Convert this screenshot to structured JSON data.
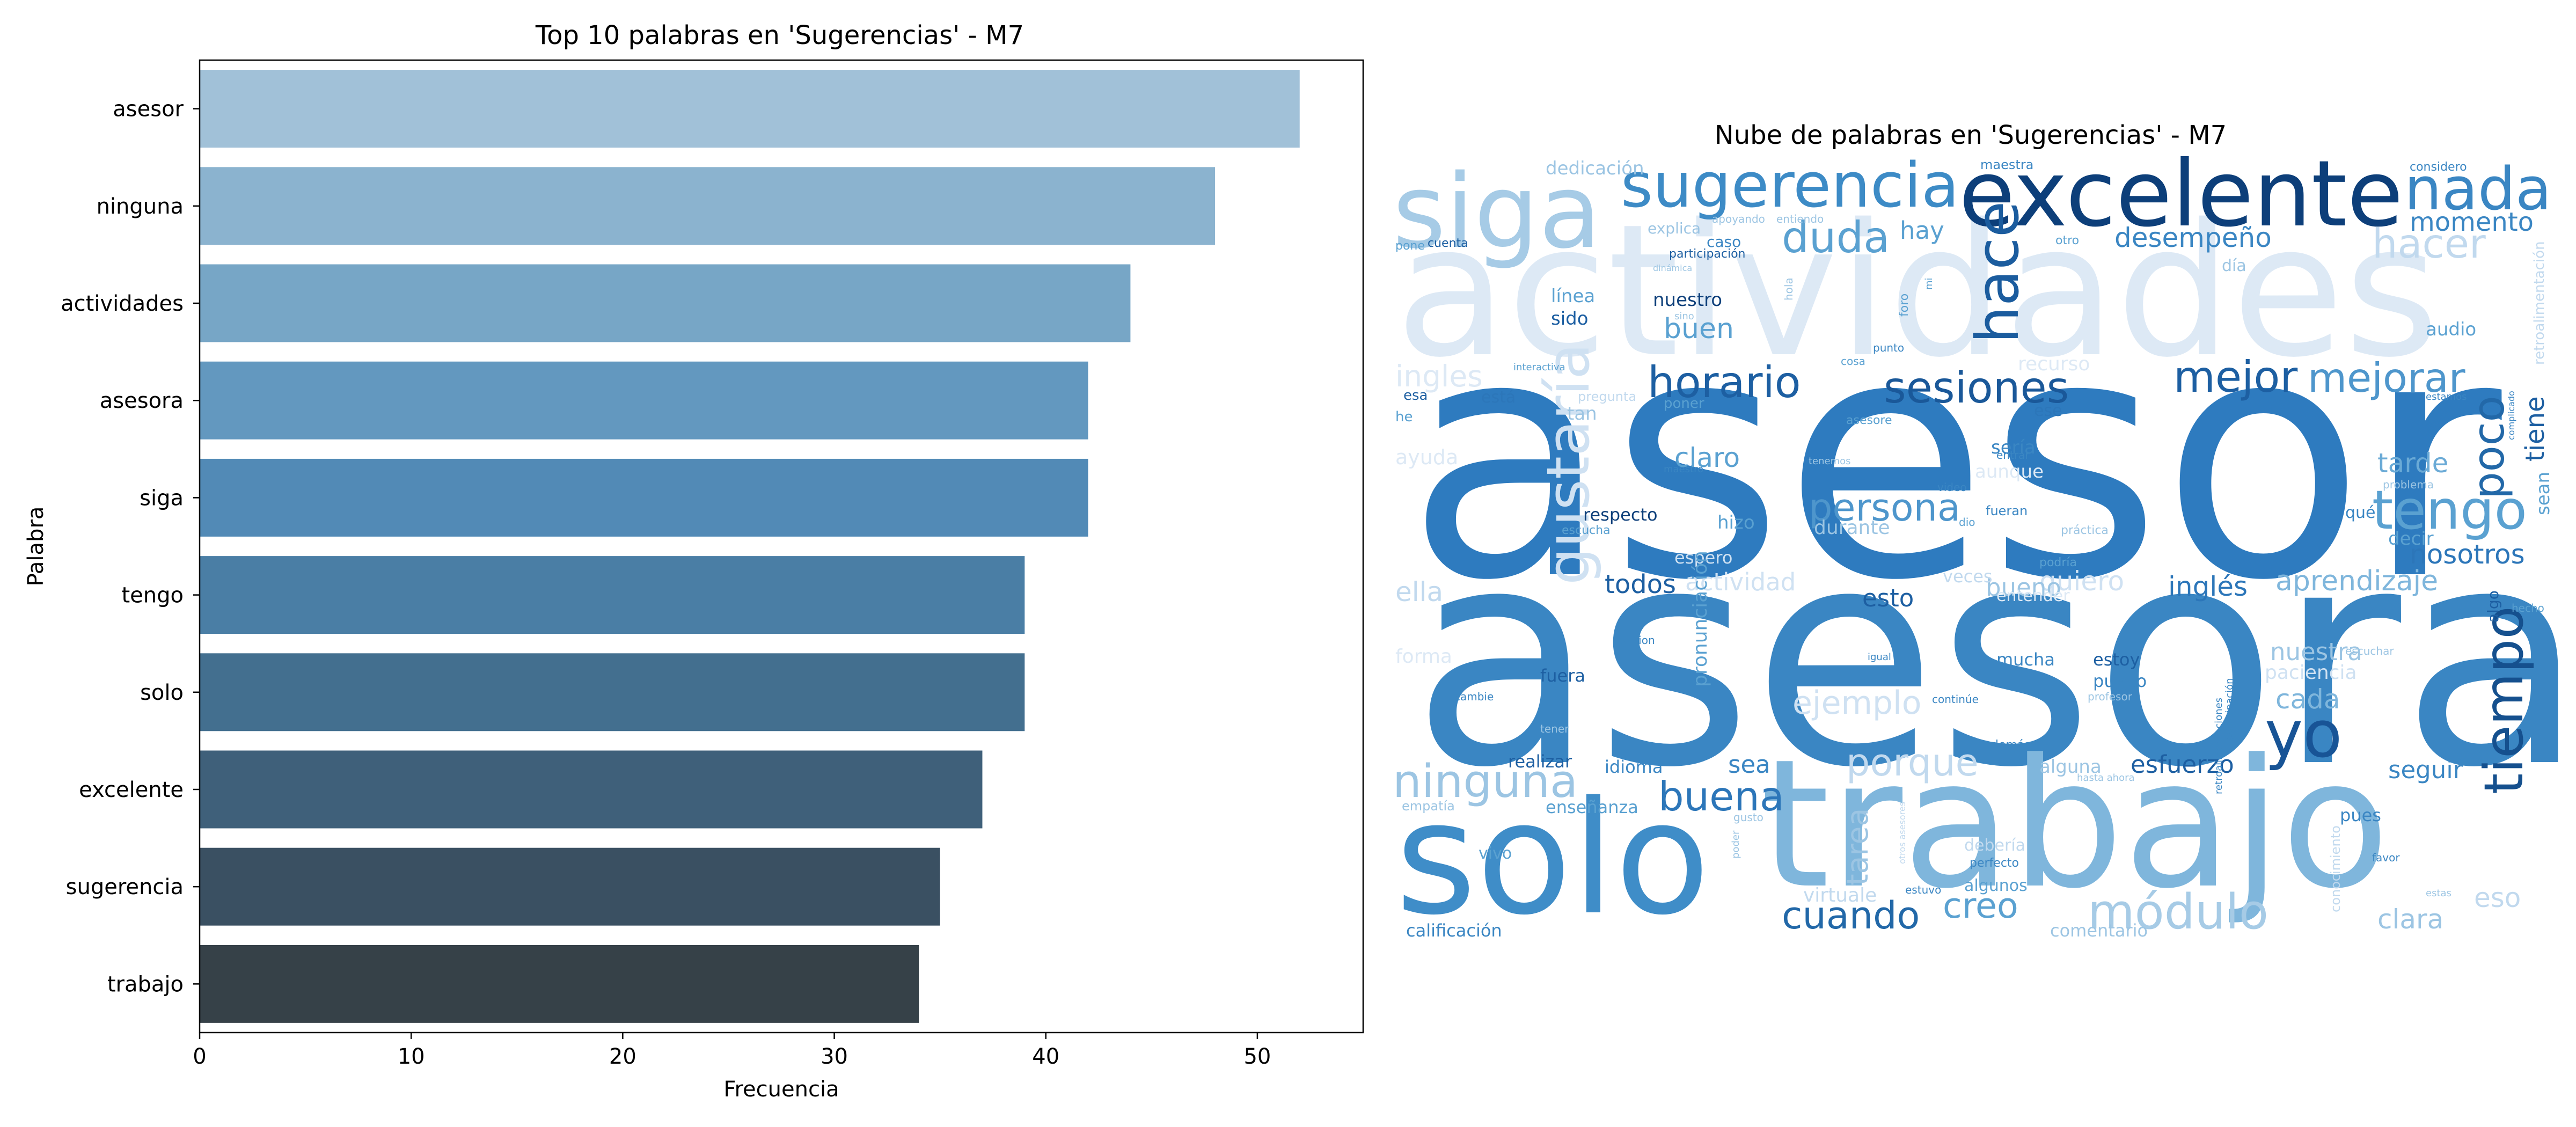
{
  "chart_data": [
    {
      "type": "bar",
      "orientation": "horizontal",
      "title": "Top 10 palabras en 'Sugerencias' - M7",
      "xlabel": "Frecuencia",
      "ylabel": "Palabra",
      "xlim": [
        0,
        55
      ],
      "xticks": [
        0,
        10,
        20,
        30,
        40,
        50
      ],
      "xtick_labels": [
        "0",
        "10",
        "20",
        "30",
        "40",
        "50"
      ],
      "grid": false,
      "categories": [
        "asesor",
        "ninguna",
        "actividades",
        "asesora",
        "siga",
        "tengo",
        "solo",
        "excelente",
        "sugerencia",
        "trabajo"
      ],
      "values": [
        52,
        48,
        44,
        42,
        42,
        39,
        39,
        37,
        35,
        34
      ],
      "colors": [
        "#a1c1d8",
        "#8bb3cf",
        "#77a6c6",
        "#6398bf",
        "#528ab6",
        "#4a7ea5",
        "#436f8f",
        "#3f607a",
        "#3a5062",
        "#364148"
      ]
    },
    {
      "type": "wordcloud",
      "title": "Nube de palabras en 'Sugerencias' - M7",
      "colormap": "Blues",
      "words": [
        {
          "text": "asesor",
          "tier": 1,
          "color": "#2e7bbf"
        },
        {
          "text": "asesora",
          "tier": 1,
          "color": "#3a86c3"
        },
        {
          "text": "actividades",
          "tier": 2,
          "color": "#dde9f5"
        },
        {
          "text": "trabajo",
          "tier": 2,
          "color": "#7fb6dc"
        },
        {
          "text": "solo",
          "tier": 2,
          "color": "#3f8dc8"
        },
        {
          "text": "excelente",
          "tier": 3,
          "color": "#0d3f7a"
        },
        {
          "text": "siga",
          "tier": 3,
          "color": "#a6cbe6"
        },
        {
          "text": "sugerencia",
          "tier": 3,
          "color": "#3d8bc6"
        },
        {
          "text": "nada",
          "tier": 4,
          "color": "#3a86c3"
        },
        {
          "text": "gustaría",
          "tier": 4,
          "color": "#cfe1f2"
        },
        {
          "text": "hace",
          "tier": 4,
          "color": "#1b5c9e"
        },
        {
          "text": "tiempo",
          "tier": 4,
          "color": "#15508e"
        },
        {
          "text": "yo",
          "tier": 4,
          "color": "#185496"
        },
        {
          "text": "tengo",
          "tier": 4,
          "color": "#5aa1d1"
        },
        {
          "text": "hacer",
          "tier": 5,
          "color": "#c1d9ee"
        },
        {
          "text": "poco",
          "tier": 5,
          "color": "#2268a8"
        },
        {
          "text": "duda",
          "tier": 5,
          "color": "#5aa1d1"
        },
        {
          "text": "horario",
          "tier": 5,
          "color": "#1d5fa2"
        },
        {
          "text": "sesiones",
          "tier": 5,
          "color": "#1a5899"
        },
        {
          "text": "mejor",
          "tier": 5,
          "color": "#1d5fa2"
        },
        {
          "text": "mejorar",
          "tier": 5,
          "color": "#4e96cc"
        },
        {
          "text": "persona",
          "tier": 5,
          "color": "#4e96cc"
        },
        {
          "text": "ninguna",
          "tier": 5,
          "color": "#9cc5e3"
        },
        {
          "text": "buena",
          "tier": 5,
          "color": "#2c76b9"
        },
        {
          "text": "porque",
          "tier": 5,
          "color": "#c1d9ee"
        },
        {
          "text": "cuando",
          "tier": 5,
          "color": "#2268a8"
        },
        {
          "text": "módulo",
          "tier": 5,
          "color": "#a6cbe6"
        },
        {
          "text": "creo",
          "tier": 5,
          "color": "#5aa1d1"
        },
        {
          "text": "ejemplo",
          "tier": 5,
          "color": "#cfe1f2"
        },
        {
          "text": "desempeño",
          "tier": 6,
          "color": "#3a86c3"
        },
        {
          "text": "momento",
          "tier": 6,
          "color": "#3a86c3"
        },
        {
          "text": "ingles",
          "tier": 6,
          "color": "#dde9f5"
        },
        {
          "text": "claro",
          "tier": 6,
          "color": "#5aa1d1"
        },
        {
          "text": "buen",
          "tier": 6,
          "color": "#5aa1d1"
        },
        {
          "text": "tarea",
          "tier": 6,
          "color": "#9cc5e3"
        },
        {
          "text": "tarde",
          "tier": 6,
          "color": "#6aaad6"
        },
        {
          "text": "nosotros",
          "tier": 6,
          "color": "#2c76b9"
        },
        {
          "text": "aprendizaje",
          "tier": 6,
          "color": "#7fb6dc"
        },
        {
          "text": "inglés",
          "tier": 6,
          "color": "#2c76b9"
        },
        {
          "text": "quiero",
          "tier": 6,
          "color": "#cfe1f2"
        },
        {
          "text": "actividad",
          "tier": 6,
          "color": "#cfe1f2"
        },
        {
          "text": "todos",
          "tier": 6,
          "color": "#1d5fa2"
        },
        {
          "text": "esto",
          "tier": 6,
          "color": "#1d5fa2"
        },
        {
          "text": "bueno",
          "tier": 6,
          "color": "#9cc5e3"
        },
        {
          "text": "nuestra",
          "tier": 6,
          "color": "#9cc5e3"
        },
        {
          "text": "cada",
          "tier": 6,
          "color": "#7fb6dc"
        },
        {
          "text": "esfuerzo",
          "tier": 6,
          "color": "#1d5fa2"
        },
        {
          "text": "sea",
          "tier": 6,
          "color": "#3a86c3"
        },
        {
          "text": "eso",
          "tier": 6,
          "color": "#c1d9ee"
        },
        {
          "text": "clara",
          "tier": 6,
          "color": "#9cc5e3"
        },
        {
          "text": "seguir",
          "tier": 6,
          "color": "#3a86c3"
        },
        {
          "text": "ella",
          "tier": 6,
          "color": "#c1d9ee"
        },
        {
          "text": "tiene",
          "tier": 6,
          "color": "#1d5fa2"
        },
        {
          "text": "hay",
          "tier": 7,
          "color": "#5aa1d1"
        },
        {
          "text": "dedicación",
          "tier": 7,
          "color": "#9cc5e3"
        },
        {
          "text": "línea",
          "tier": 7,
          "color": "#5aa1d1"
        },
        {
          "text": "nuestro",
          "tier": 7,
          "color": "#0d3f7a"
        },
        {
          "text": "sido",
          "tier": 7,
          "color": "#1d5fa2"
        },
        {
          "text": "audio",
          "tier": 7,
          "color": "#5aa1d1"
        },
        {
          "text": "recurso",
          "tier": 7,
          "color": "#dde9f5"
        },
        {
          "text": "sería",
          "tier": 7,
          "color": "#3a86c3"
        },
        {
          "text": "hizo",
          "tier": 7,
          "color": "#5aa1d1"
        },
        {
          "text": "durante",
          "tier": 7,
          "color": "#9cc5e3"
        },
        {
          "text": "respecto",
          "tier": 7,
          "color": "#0d3f7a"
        },
        {
          "text": "decir",
          "tier": 7,
          "color": "#5aa1d1"
        },
        {
          "text": "paciencia",
          "tier": 7,
          "color": "#cfe1f2"
        },
        {
          "text": "estoy",
          "tier": 7,
          "color": "#1d5fa2"
        },
        {
          "text": "puedo",
          "tier": 7,
          "color": "#3a86c3"
        },
        {
          "text": "mucha",
          "tier": 7,
          "color": "#3a86c3"
        },
        {
          "text": "fuera",
          "tier": 7,
          "color": "#1d5fa2"
        },
        {
          "text": "realizar",
          "tier": 7,
          "color": "#1d5fa2"
        },
        {
          "text": "idioma",
          "tier": 7,
          "color": "#3a86c3"
        },
        {
          "text": "enseñanza",
          "tier": 7,
          "color": "#5aa1d1"
        },
        {
          "text": "calificación",
          "tier": 7,
          "color": "#3a86c3"
        },
        {
          "text": "comentario",
          "tier": 7,
          "color": "#9cc5e3"
        },
        {
          "text": "pues",
          "tier": 7,
          "color": "#3a86c3"
        },
        {
          "text": "veces",
          "tier": 7,
          "color": "#c1d9ee"
        },
        {
          "text": "alguna",
          "tier": 7,
          "color": "#9cc5e3"
        },
        {
          "text": "entender",
          "tier": 7,
          "color": "#dde9f5"
        },
        {
          "text": "espero",
          "tier": 7,
          "color": "#cfe1f2"
        },
        {
          "text": "explica",
          "tier": 8,
          "color": "#9cc5e3"
        },
        {
          "text": "caso",
          "tier": 8,
          "color": "#3a86c3"
        },
        {
          "text": "participación",
          "tier": 8,
          "color": "#1d5fa2"
        },
        {
          "text": "esa",
          "tier": 8,
          "color": "#1d5fa2"
        },
        {
          "text": "he",
          "tier": 8,
          "color": "#5aa1d1"
        },
        {
          "text": "está",
          "tier": 8,
          "color": "#2c76b9"
        },
        {
          "text": "ese",
          "tier": 8,
          "color": "#2c76b9"
        },
        {
          "text": "poner",
          "tier": 8,
          "color": "#5aa1d1"
        },
        {
          "text": "asesore",
          "tier": 8,
          "color": "#5aa1d1"
        },
        {
          "text": "aunque",
          "tier": 8,
          "color": "#dde9f5"
        },
        {
          "text": "qué",
          "tier": 8,
          "color": "#3a86c3"
        },
        {
          "text": "fueran",
          "tier": 8,
          "color": "#3a86c3"
        },
        {
          "text": "escucha",
          "tier": 8,
          "color": "#5aa1d1"
        },
        {
          "text": "pronunciación",
          "tier": 8,
          "color": "#5aa1d1"
        },
        {
          "text": "debería",
          "tier": 8,
          "color": "#c1d9ee"
        },
        {
          "text": "algunos",
          "tier": 8,
          "color": "#5aa1d1"
        },
        {
          "text": "virtuale",
          "tier": 8,
          "color": "#c1d9ee"
        },
        {
          "text": "perfecto",
          "tier": 8,
          "color": "#3a86c3"
        },
        {
          "text": "podría",
          "tier": 8,
          "color": "#5aa1d1"
        },
        {
          "text": "práctica",
          "tier": 8,
          "color": "#9cc5e3"
        },
        {
          "text": "sean",
          "tier": 8,
          "color": "#5aa1d1"
        },
        {
          "text": "maestra",
          "tier": 8,
          "color": "#3a86c3"
        },
        {
          "text": "considero",
          "tier": 8,
          "color": "#3a86c3"
        },
        {
          "text": "otro",
          "tier": 8,
          "color": "#5aa1d1"
        },
        {
          "text": "retroalimentación",
          "tier": 8,
          "color": "#c1d9ee"
        },
        {
          "text": "pone",
          "tier": 8,
          "color": "#5aa1d1"
        },
        {
          "text": "cuenta",
          "tier": 8,
          "color": "#1d5fa2"
        },
        {
          "text": "día",
          "tier": 8,
          "color": "#9cc5e3"
        },
        {
          "text": "tan",
          "tier": 8,
          "color": "#9cc5e3"
        },
        {
          "text": "pregunta",
          "tier": 8,
          "color": "#c1d9ee"
        },
        {
          "text": "ayuda",
          "tier": 8,
          "color": "#dde9f5"
        },
        {
          "text": "forma",
          "tier": 8,
          "color": "#dde9f5"
        },
        {
          "text": "algo",
          "tier": 8,
          "color": "#1d5fa2"
        },
        {
          "text": "hecho",
          "tier": 8,
          "color": "#5aa1d1"
        },
        {
          "text": "favor",
          "tier": 8,
          "color": "#3a86c3"
        },
        {
          "text": "estuvo",
          "tier": 8,
          "color": "#3a86c3"
        },
        {
          "text": "vivo",
          "tier": 8,
          "color": "#5aa1d1"
        },
        {
          "text": "empatía",
          "tier": 8,
          "color": "#9cc5e3"
        },
        {
          "text": "demás",
          "tier": 8,
          "color": "#3a86c3"
        },
        {
          "text": "profesor",
          "tier": 9,
          "color": "#9cc5e3"
        },
        {
          "text": "hasta ahora",
          "tier": 9,
          "color": "#9cc5e3"
        },
        {
          "text": "maestro",
          "tier": 9,
          "color": "#3a86c3"
        },
        {
          "text": "tenemos",
          "tier": 9,
          "color": "#9cc5e3"
        },
        {
          "text": "entrar",
          "tier": 9,
          "color": "#3a86c3"
        },
        {
          "text": "video",
          "tier": 9,
          "color": "#3a86c3"
        },
        {
          "text": "dio",
          "tier": 9,
          "color": "#5aa1d1"
        },
        {
          "text": "problema",
          "tier": 9,
          "color": "#9cc5e3"
        },
        {
          "text": "escuchar",
          "tier": 9,
          "color": "#9cc5e3"
        },
        {
          "text": "sesion",
          "tier": 9,
          "color": "#3a86c3"
        },
        {
          "text": "continúe",
          "tier": 9,
          "color": "#3a86c3"
        },
        {
          "text": "igual",
          "tier": 9,
          "color": "#3a86c3"
        },
        {
          "text": "cambie",
          "tier": 9,
          "color": "#3a86c3"
        },
        {
          "text": "tener",
          "tier": 9,
          "color": "#9cc5e3"
        },
        {
          "text": "poder",
          "tier": 9,
          "color": "#9cc5e3"
        },
        {
          "text": "gusto",
          "tier": 9,
          "color": "#9cc5e3"
        },
        {
          "text": "cosa",
          "tier": 9,
          "color": "#5aa1d1"
        },
        {
          "text": "punto",
          "tier": 9,
          "color": "#3a86c3"
        },
        {
          "text": "foro",
          "tier": 9,
          "color": "#5aa1d1"
        },
        {
          "text": "hola",
          "tier": 9,
          "color": "#9cc5e3"
        },
        {
          "text": "sino",
          "tier": 9,
          "color": "#9cc5e3"
        },
        {
          "text": "dinámica",
          "tier": 9,
          "color": "#9cc5e3"
        },
        {
          "text": "apoyando",
          "tier": 9,
          "color": "#9cc5e3"
        },
        {
          "text": "entiendo",
          "tier": 9,
          "color": "#9cc5e3"
        },
        {
          "text": "interactiva",
          "tier": 9,
          "color": "#5aa1d1"
        },
        {
          "text": "estamos",
          "tier": 9,
          "color": "#3a86c3"
        },
        {
          "text": "complicado",
          "tier": 9,
          "color": "#3a86c3"
        },
        {
          "text": "estas",
          "tier": 9,
          "color": "#9cc5e3"
        },
        {
          "text": "conocimiento",
          "tier": 9,
          "color": "#c1d9ee"
        },
        {
          "text": "otros asesores",
          "tier": 9,
          "color": "#c1d9ee"
        },
        {
          "text": "retroalimentaciones",
          "tier": 9,
          "color": "#3a86c3"
        },
        {
          "text": "participación",
          "tier": 9,
          "color": "#3a86c3"
        },
        {
          "text": "mi",
          "tier": 9,
          "color": "#5aa1d1"
        }
      ]
    }
  ]
}
